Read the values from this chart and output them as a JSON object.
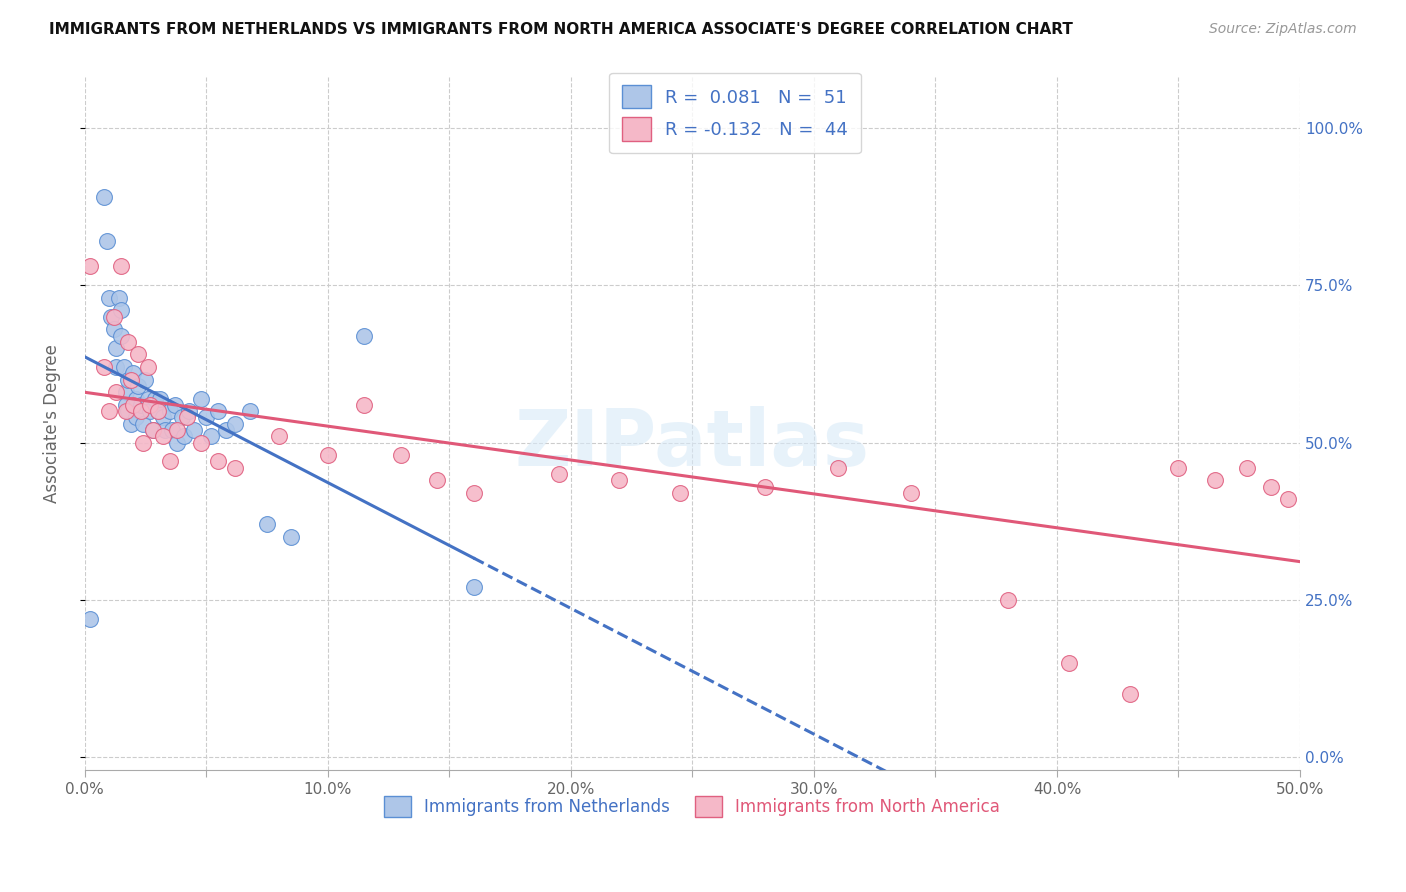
{
  "title": "IMMIGRANTS FROM NETHERLANDS VS IMMIGRANTS FROM NORTH AMERICA ASSOCIATE'S DEGREE CORRELATION CHART",
  "source": "Source: ZipAtlas.com",
  "ylabel": "Associate's Degree",
  "yticks": [
    "0.0%",
    "25.0%",
    "50.0%",
    "75.0%",
    "100.0%"
  ],
  "ytick_vals": [
    0.0,
    0.25,
    0.5,
    0.75,
    1.0
  ],
  "xtick_vals": [
    0.0,
    0.05,
    0.1,
    0.15,
    0.2,
    0.25,
    0.3,
    0.35,
    0.4,
    0.45,
    0.5
  ],
  "xtick_labels": [
    "0.0%",
    "",
    "10.0%",
    "",
    "20.0%",
    "",
    "30.0%",
    "",
    "40.0%",
    "",
    "50.0%"
  ],
  "xlim": [
    0.0,
    0.5
  ],
  "ylim": [
    -0.02,
    1.08
  ],
  "R_blue": 0.081,
  "N_blue": 51,
  "R_pink": -0.132,
  "N_pink": 44,
  "legend_label_blue": "Immigrants from Netherlands",
  "legend_label_pink": "Immigrants from North America",
  "watermark": "ZIPatlas",
  "blue_fill": "#aec6e8",
  "blue_edge": "#5b8fd4",
  "pink_fill": "#f5b8c8",
  "pink_edge": "#e06080",
  "blue_line": "#4472c4",
  "pink_line": "#e05878",
  "blue_scatter_x": [
    0.002,
    0.008,
    0.009,
    0.01,
    0.011,
    0.012,
    0.013,
    0.013,
    0.014,
    0.015,
    0.015,
    0.016,
    0.017,
    0.017,
    0.018,
    0.018,
    0.019,
    0.02,
    0.021,
    0.021,
    0.022,
    0.023,
    0.024,
    0.025,
    0.026,
    0.027,
    0.028,
    0.029,
    0.03,
    0.031,
    0.032,
    0.033,
    0.035,
    0.036,
    0.037,
    0.038,
    0.04,
    0.041,
    0.043,
    0.045,
    0.048,
    0.05,
    0.052,
    0.055,
    0.058,
    0.062,
    0.068,
    0.075,
    0.085,
    0.115,
    0.16
  ],
  "blue_scatter_y": [
    0.22,
    0.89,
    0.82,
    0.73,
    0.7,
    0.68,
    0.65,
    0.62,
    0.73,
    0.71,
    0.67,
    0.62,
    0.58,
    0.56,
    0.6,
    0.55,
    0.53,
    0.61,
    0.57,
    0.54,
    0.59,
    0.56,
    0.53,
    0.6,
    0.57,
    0.55,
    0.52,
    0.57,
    0.55,
    0.57,
    0.54,
    0.52,
    0.55,
    0.52,
    0.56,
    0.5,
    0.54,
    0.51,
    0.55,
    0.52,
    0.57,
    0.54,
    0.51,
    0.55,
    0.52,
    0.53,
    0.55,
    0.37,
    0.35,
    0.67,
    0.27
  ],
  "pink_scatter_x": [
    0.002,
    0.008,
    0.01,
    0.012,
    0.013,
    0.015,
    0.017,
    0.018,
    0.019,
    0.02,
    0.022,
    0.023,
    0.024,
    0.026,
    0.027,
    0.028,
    0.03,
    0.032,
    0.035,
    0.038,
    0.042,
    0.048,
    0.055,
    0.062,
    0.08,
    0.1,
    0.115,
    0.13,
    0.145,
    0.16,
    0.195,
    0.22,
    0.245,
    0.28,
    0.31,
    0.34,
    0.38,
    0.405,
    0.43,
    0.45,
    0.465,
    0.478,
    0.488,
    0.495
  ],
  "pink_scatter_y": [
    0.78,
    0.62,
    0.55,
    0.7,
    0.58,
    0.78,
    0.55,
    0.66,
    0.6,
    0.56,
    0.64,
    0.55,
    0.5,
    0.62,
    0.56,
    0.52,
    0.55,
    0.51,
    0.47,
    0.52,
    0.54,
    0.5,
    0.47,
    0.46,
    0.51,
    0.48,
    0.56,
    0.48,
    0.44,
    0.42,
    0.45,
    0.44,
    0.42,
    0.43,
    0.46,
    0.42,
    0.25,
    0.15,
    0.1,
    0.46,
    0.44,
    0.46,
    0.43,
    0.41
  ]
}
